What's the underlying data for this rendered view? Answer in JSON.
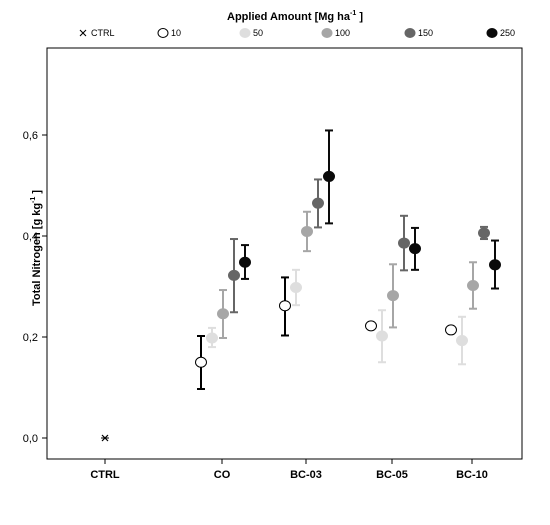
{
  "chart_data": {
    "type": "scatter",
    "title": "",
    "legend_title_main": "Applied Amount [Mg ha",
    "legend_title_sup": "-1",
    "legend_title_end": " ]",
    "legend_position": "top",
    "ylabel_main": "Total Nitrogen [g kg",
    "ylabel_sup": "-1",
    "ylabel_end": " ]",
    "xlabel": "",
    "categories": [
      "CTRL",
      "CO",
      "BC-03",
      "BC-05",
      "BC-10"
    ],
    "y_ticks": [
      0.0,
      0.2,
      0.4,
      0.6
    ],
    "y_tick_labels": [
      "0,0",
      "0,2",
      "0,4",
      "0,6"
    ],
    "ylim": [
      -0.04,
      0.71
    ],
    "grid": false,
    "series": [
      {
        "name": "CTRL",
        "marker": "x",
        "color": "#000000",
        "points": [
          {
            "cat": "CTRL",
            "y": 0.0,
            "lo": 0.0,
            "hi": 0.0
          }
        ]
      },
      {
        "name": "10",
        "marker": "circle-open",
        "color": "#ffffff",
        "points": [
          {
            "cat": "CO",
            "y": 0.15,
            "lo": 0.097,
            "hi": 0.202
          },
          {
            "cat": "BC-03",
            "y": 0.262,
            "lo": 0.203,
            "hi": 0.318
          },
          {
            "cat": "BC-05",
            "y": 0.222,
            "lo": 0.222,
            "hi": 0.222
          },
          {
            "cat": "BC-10",
            "y": 0.214,
            "lo": 0.214,
            "hi": 0.214
          }
        ]
      },
      {
        "name": "50",
        "marker": "circle",
        "color": "#dedede",
        "points": [
          {
            "cat": "CO",
            "y": 0.198,
            "lo": 0.18,
            "hi": 0.218
          },
          {
            "cat": "BC-03",
            "y": 0.298,
            "lo": 0.263,
            "hi": 0.333
          },
          {
            "cat": "BC-05",
            "y": 0.202,
            "lo": 0.15,
            "hi": 0.253
          },
          {
            "cat": "BC-10",
            "y": 0.193,
            "lo": 0.146,
            "hi": 0.24
          }
        ]
      },
      {
        "name": "100",
        "marker": "circle",
        "color": "#a6a6a6",
        "points": [
          {
            "cat": "CO",
            "y": 0.246,
            "lo": 0.198,
            "hi": 0.293
          },
          {
            "cat": "BC-03",
            "y": 0.409,
            "lo": 0.37,
            "hi": 0.448
          },
          {
            "cat": "BC-05",
            "y": 0.282,
            "lo": 0.219,
            "hi": 0.344
          },
          {
            "cat": "BC-10",
            "y": 0.302,
            "lo": 0.256,
            "hi": 0.348
          }
        ]
      },
      {
        "name": "150",
        "marker": "circle",
        "color": "#666666",
        "points": [
          {
            "cat": "CO",
            "y": 0.322,
            "lo": 0.249,
            "hi": 0.394
          },
          {
            "cat": "BC-03",
            "y": 0.465,
            "lo": 0.417,
            "hi": 0.512
          },
          {
            "cat": "BC-05",
            "y": 0.386,
            "lo": 0.332,
            "hi": 0.44
          },
          {
            "cat": "BC-10",
            "y": 0.406,
            "lo": 0.394,
            "hi": 0.418
          }
        ]
      },
      {
        "name": "250",
        "marker": "circle",
        "color": "#0a0a0a",
        "points": [
          {
            "cat": "CO",
            "y": 0.348,
            "lo": 0.315,
            "hi": 0.382
          },
          {
            "cat": "BC-03",
            "y": 0.518,
            "lo": 0.425,
            "hi": 0.609
          },
          {
            "cat": "BC-05",
            "y": 0.375,
            "lo": 0.333,
            "hi": 0.416
          },
          {
            "cat": "BC-10",
            "y": 0.343,
            "lo": 0.296,
            "hi": 0.391
          }
        ]
      }
    ]
  }
}
